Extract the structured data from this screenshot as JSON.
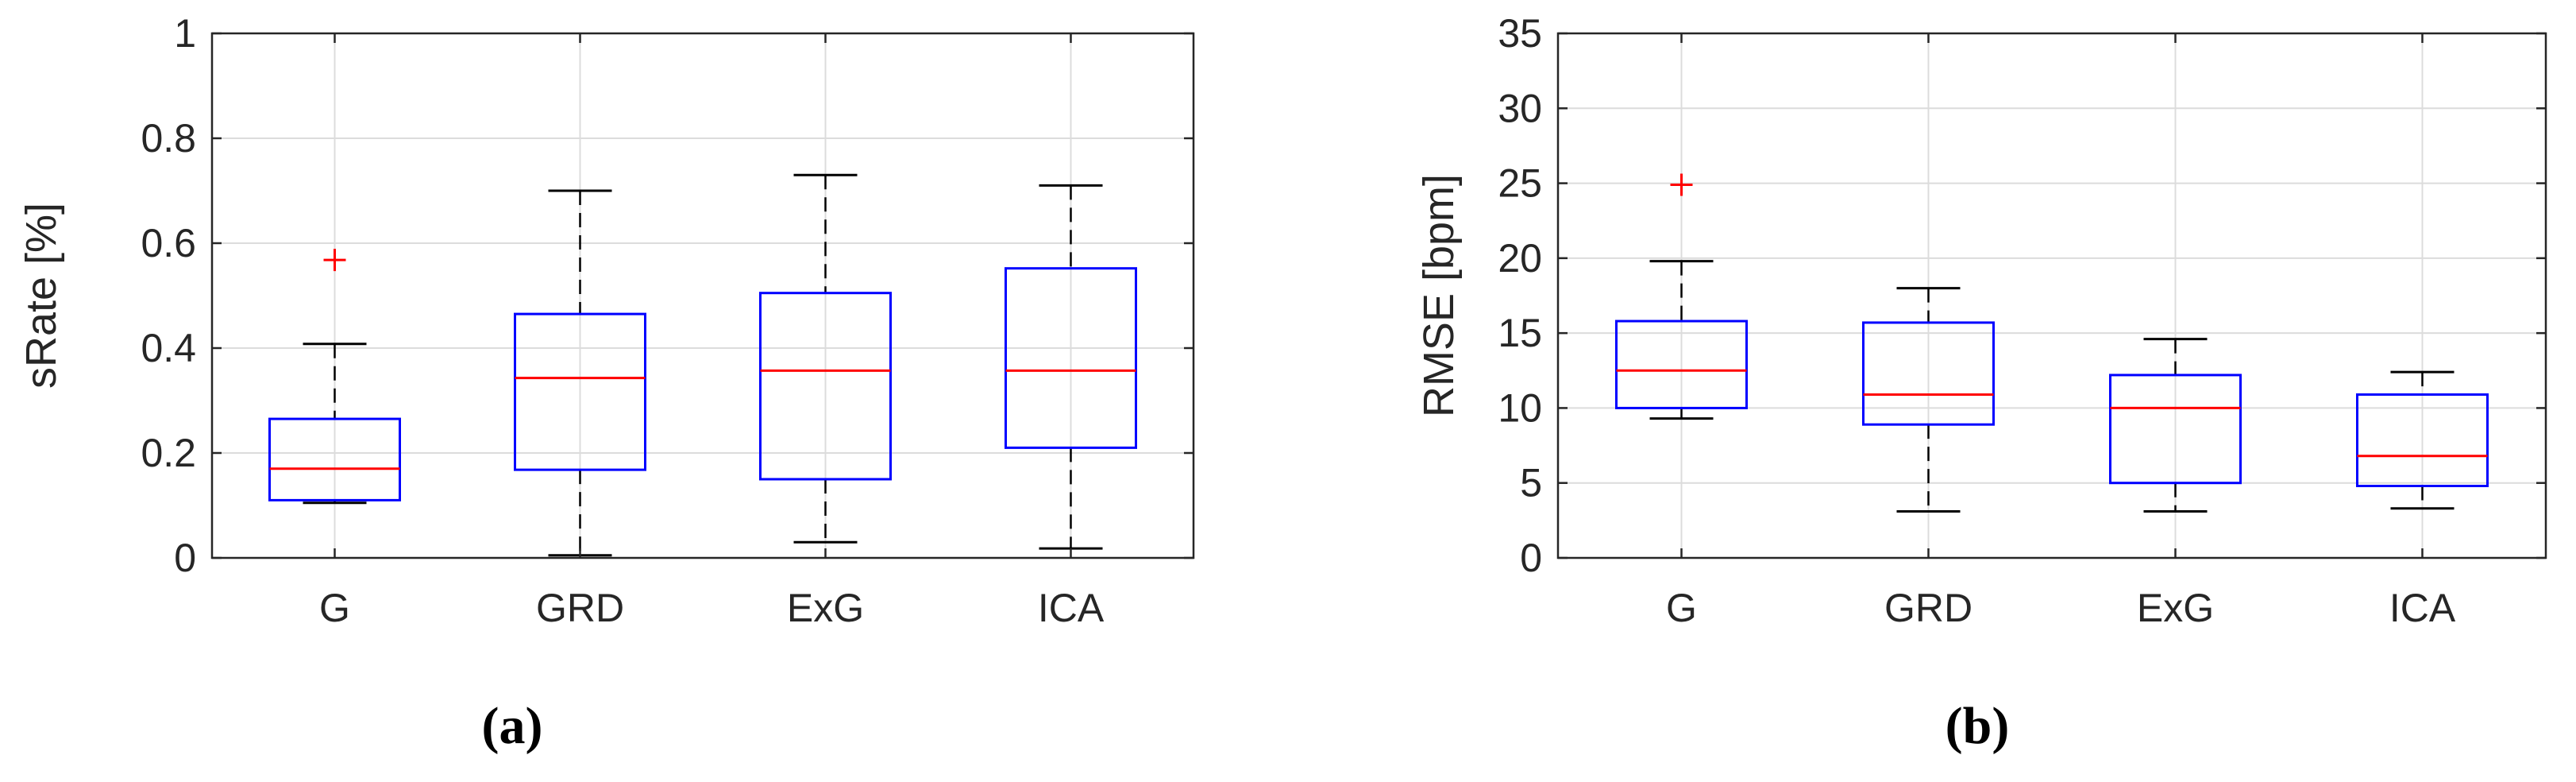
{
  "chart_data": [
    {
      "type": "box",
      "caption": "(a)",
      "title": "",
      "xlabel": "",
      "ylabel": "sRate [%]",
      "ylim": [
        0,
        1
      ],
      "yticks": [
        0,
        0.2,
        0.4,
        0.6,
        0.8,
        1
      ],
      "ytick_labels": [
        "0",
        "0.2",
        "0.4",
        "0.6",
        "0.8",
        "1"
      ],
      "grid": true,
      "categories": [
        "G",
        "GRD",
        "ExG",
        "ICA"
      ],
      "boxes": [
        {
          "category": "G",
          "whisker_low": 0.105,
          "q1": 0.11,
          "median": 0.17,
          "q3": 0.265,
          "whisker_high": 0.408,
          "outliers": [
            0.568
          ]
        },
        {
          "category": "GRD",
          "whisker_low": 0.005,
          "q1": 0.168,
          "median": 0.343,
          "q3": 0.465,
          "whisker_high": 0.7,
          "outliers": []
        },
        {
          "category": "ExG",
          "whisker_low": 0.03,
          "q1": 0.15,
          "median": 0.357,
          "q3": 0.505,
          "whisker_high": 0.73,
          "outliers": []
        },
        {
          "category": "ICA",
          "whisker_low": 0.018,
          "q1": 0.21,
          "median": 0.357,
          "q3": 0.552,
          "whisker_high": 0.71,
          "outliers": []
        }
      ]
    },
    {
      "type": "box",
      "caption": "(b)",
      "title": "",
      "xlabel": "",
      "ylabel": "RMSE [bpm]",
      "ylim": [
        0,
        35
      ],
      "yticks": [
        0,
        5,
        10,
        15,
        20,
        25,
        30,
        35
      ],
      "ytick_labels": [
        "0",
        "5",
        "10",
        "15",
        "20",
        "25",
        "30",
        "35"
      ],
      "grid": true,
      "categories": [
        "G",
        "GRD",
        "ExG",
        "ICA"
      ],
      "boxes": [
        {
          "category": "G",
          "whisker_low": 9.3,
          "q1": 10.0,
          "median": 12.5,
          "q3": 15.8,
          "whisker_high": 19.8,
          "outliers": [
            24.9
          ]
        },
        {
          "category": "GRD",
          "whisker_low": 3.1,
          "q1": 8.9,
          "median": 10.9,
          "q3": 15.7,
          "whisker_high": 18.0,
          "outliers": []
        },
        {
          "category": "ExG",
          "whisker_low": 3.1,
          "q1": 5.0,
          "median": 10.0,
          "q3": 12.2,
          "whisker_high": 14.6,
          "outliers": []
        },
        {
          "category": "ICA",
          "whisker_low": 3.3,
          "q1": 4.8,
          "median": 6.8,
          "q3": 10.9,
          "whisker_high": 12.4,
          "outliers": []
        }
      ]
    }
  ],
  "colors": {
    "box": "#0000ff",
    "median": "#ff0000",
    "whisker": "#000000",
    "outlier": "#ff0000",
    "axis": "#262626",
    "grid": "#dcdcdc"
  }
}
